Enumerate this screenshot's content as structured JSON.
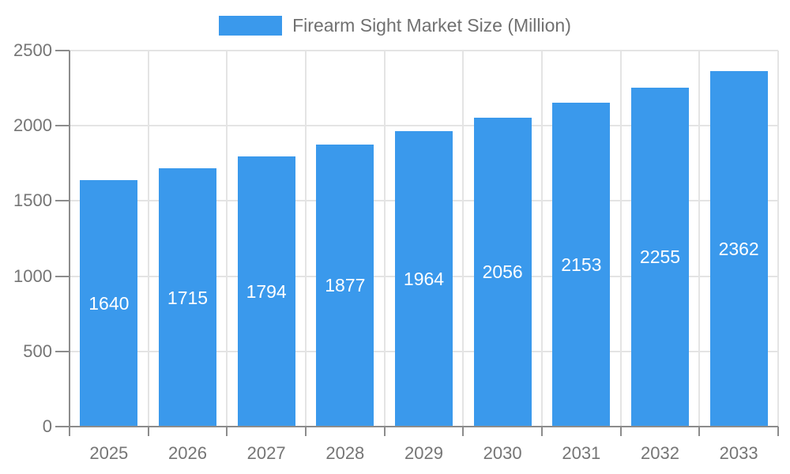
{
  "chart_data": {
    "type": "bar",
    "title": "Firearm Sight Market Size (Million)",
    "categories": [
      "2025",
      "2026",
      "2027",
      "2028",
      "2029",
      "2030",
      "2031",
      "2032",
      "2033"
    ],
    "values": [
      1640,
      1715,
      1794,
      1877,
      1964,
      2056,
      2153,
      2255,
      2362
    ],
    "series_name": "Firearm Sight Market Size (Million)",
    "xlabel": "",
    "ylabel": "",
    "ylim": [
      0,
      2500
    ],
    "yticks": [
      0,
      500,
      1000,
      1500,
      2000,
      2500
    ],
    "grid": true,
    "legend_position": "top-center",
    "data_labels": "inside-center",
    "colors": {
      "bar": "#3a99ec",
      "grid_line": "#e4e4e4",
      "axis_line": "#8c8c8c",
      "axis_text": "#757575",
      "legend_text": "#707070",
      "data_label_text": "#ffffff",
      "background": "#ffffff"
    }
  }
}
